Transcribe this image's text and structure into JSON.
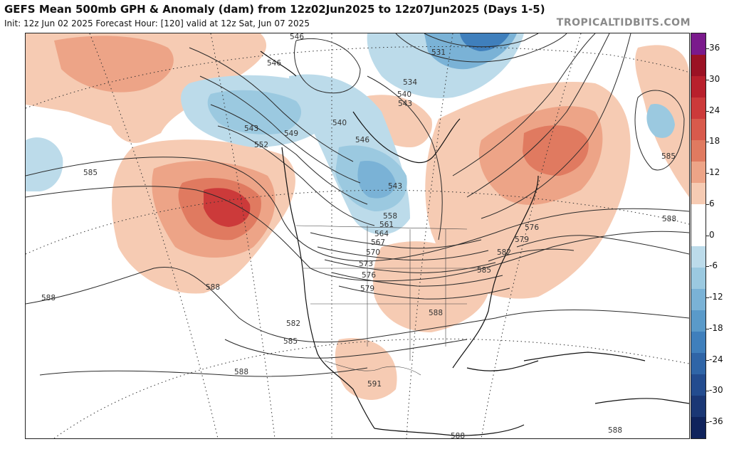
{
  "header": {
    "title": "GEFS Mean 500mb GPH & Anomaly (dam) from 12z02Jun2025 to 12z07Jun2025 (Days 1-5)",
    "subtitle": "Init: 12z Jun 02 2025   Forecast Hour: [120]   valid at 12z Sat, Jun 07 2025",
    "watermark": "TROPICALTIDBITS.COM"
  },
  "colorbar": {
    "tick_labels": [
      "36",
      "30",
      "24",
      "18",
      "12",
      "6",
      "0",
      "-6",
      "-12",
      "-18",
      "-24",
      "-30",
      "-36"
    ],
    "colors": [
      "#7a1a8c",
      "#9b1224",
      "#b8202c",
      "#cc3a3a",
      "#d85a4c",
      "#e07a60",
      "#eda487",
      "#f6cbb3",
      "#ffffff",
      "#ffffff",
      "#bcdbea",
      "#9bc9e0",
      "#7ab2d6",
      "#5a9ac9",
      "#3f7fbc",
      "#2f65a7",
      "#234c8f",
      "#1a3775",
      "#0f235c"
    ]
  },
  "contour_labels": [
    "546",
    "546",
    "531",
    "534",
    "540",
    "543",
    "543",
    "549",
    "552",
    "540",
    "546",
    "543",
    "585",
    "585",
    "588",
    "558",
    "561",
    "564",
    "567",
    "570",
    "573",
    "576",
    "579",
    "582",
    "585",
    "588",
    "588",
    "591",
    "588",
    "588",
    "576",
    "579",
    "582",
    "585",
    "588",
    "588"
  ]
}
